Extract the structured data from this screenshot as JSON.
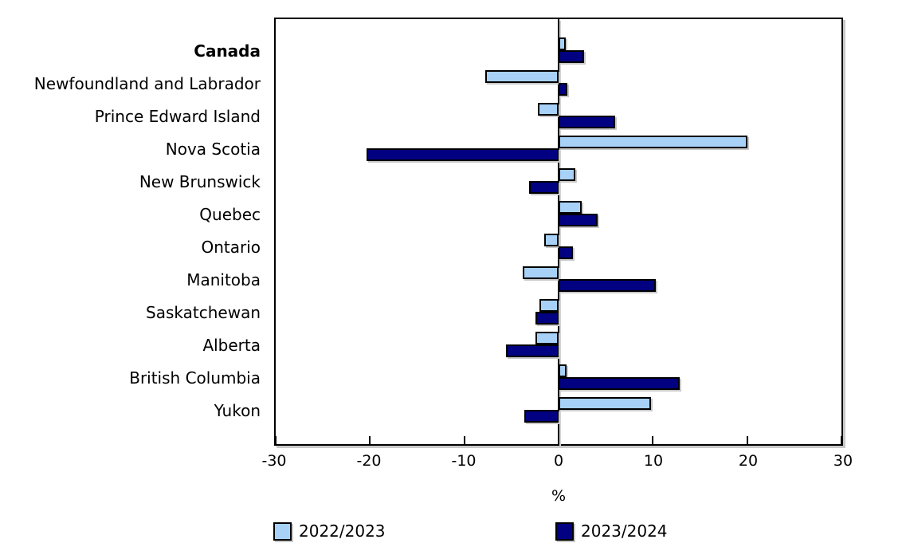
{
  "xaxis_unit_label": "%",
  "chart_data": {
    "type": "bar",
    "orientation": "horizontal",
    "title": "",
    "xlabel": "%",
    "ylabel": "",
    "xlim": [
      -30,
      30
    ],
    "xticks": [
      -30,
      -20,
      -10,
      0,
      10,
      20,
      30
    ],
    "grid": false,
    "legend_position": "bottom",
    "categories": [
      "Canada",
      "Newfoundland and Labrador",
      "Prince Edward Island",
      "Nova Scotia",
      "New Brunswick",
      "Quebec",
      "Ontario",
      "Manitoba",
      "Saskatchewan",
      "Alberta",
      "British Columbia",
      "Yukon"
    ],
    "bold_categories": [
      "Canada"
    ],
    "series": [
      {
        "name": "2022/2023",
        "color": "#a8d1f8",
        "values": [
          0.4,
          -7.4,
          -1.9,
          19.7,
          1.4,
          2.1,
          -1.2,
          -3.5,
          -1.7,
          -2.1,
          0.5,
          9.5
        ]
      },
      {
        "name": "2023/2024",
        "color": "#010181",
        "values": [
          2.4,
          0.6,
          5.7,
          -20.0,
          -2.8,
          3.8,
          1.2,
          10.0,
          -2.1,
          -5.2,
          12.5,
          -3.3
        ]
      }
    ],
    "colors": {
      "bar_outline": "#000000",
      "shadow": "#c9c9c9",
      "background": "#ffffff",
      "text": "#000000"
    }
  }
}
